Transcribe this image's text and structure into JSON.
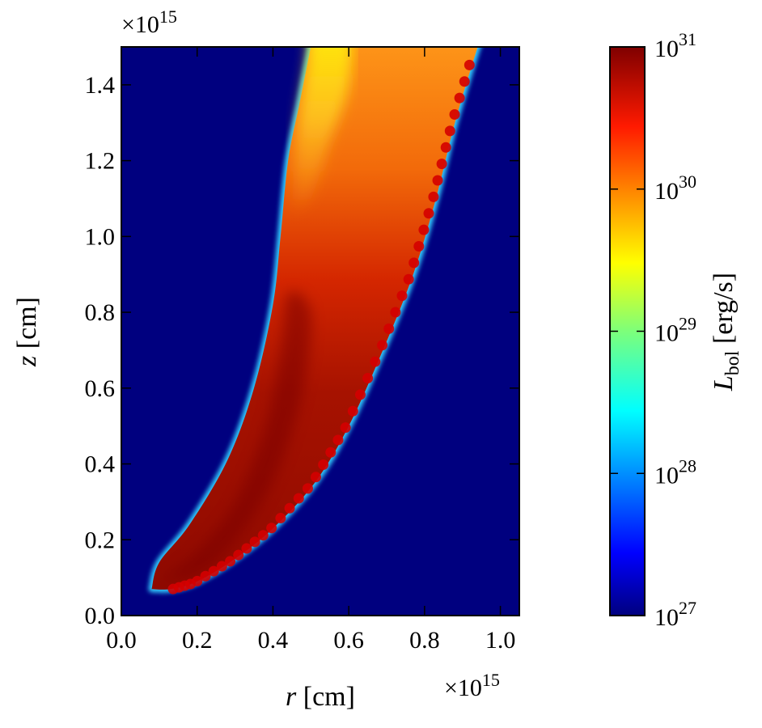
{
  "chart_data": {
    "type": "heatmap",
    "title": "",
    "x": {
      "label": "r [cm]",
      "label_var": "r",
      "label_unit": " [cm]",
      "range": [
        0.0,
        1.05
      ],
      "ticks": [
        0.0,
        0.2,
        0.4,
        0.6,
        0.8,
        1.0
      ],
      "tick_labels": [
        "0.0",
        "0.2",
        "0.4",
        "0.6",
        "0.8",
        "1.0"
      ],
      "multiplier": "×10",
      "multiplier_exp": "15"
    },
    "y": {
      "label": "z [cm]",
      "label_var": "z",
      "label_unit": " [cm]",
      "range": [
        0.0,
        1.5
      ],
      "ticks": [
        0.0,
        0.2,
        0.4,
        0.6,
        0.8,
        1.0,
        1.2,
        1.4
      ],
      "tick_labels": [
        "0.0",
        "0.2",
        "0.4",
        "0.6",
        "0.8",
        "1.0",
        "1.2",
        "1.4"
      ],
      "multiplier": "×10",
      "multiplier_exp": "15"
    },
    "colorbar": {
      "label": "L_bol [erg/s]",
      "label_var": "L",
      "label_sub": "bol",
      "label_unit": " [erg/s]",
      "scale": "log",
      "range": [
        1e+27,
        1e+31
      ],
      "ticks": [
        {
          "base": "10",
          "exp": "31"
        },
        {
          "base": "10",
          "exp": "30"
        },
        {
          "base": "10",
          "exp": "29"
        },
        {
          "base": "10",
          "exp": "28"
        },
        {
          "base": "10",
          "exp": "27"
        }
      ],
      "colormap": "jet"
    },
    "background_value": 1e+27,
    "colors": {
      "background": "#00007f",
      "dark_red": "#8b0000",
      "red": "#e01c00",
      "orange": "#ff8c00",
      "yellow": "#ffee00",
      "cyan": "#00ffff"
    },
    "region": {
      "description_units": "r and z in units of 1e15 cm",
      "left_edge": [
        [
          0.08,
          0.07
        ],
        [
          0.1,
          0.14
        ],
        [
          0.18,
          0.24
        ],
        [
          0.28,
          0.41
        ],
        [
          0.35,
          0.6
        ],
        [
          0.4,
          0.82
        ],
        [
          0.42,
          1.0
        ],
        [
          0.44,
          1.2
        ],
        [
          0.47,
          1.35
        ],
        [
          0.5,
          1.5
        ]
      ],
      "right_edge": [
        [
          0.94,
          1.5
        ],
        [
          0.88,
          1.3
        ],
        [
          0.83,
          1.1
        ],
        [
          0.77,
          0.9
        ],
        [
          0.69,
          0.7
        ],
        [
          0.6,
          0.5
        ],
        [
          0.51,
          0.35
        ],
        [
          0.4,
          0.23
        ],
        [
          0.3,
          0.15
        ],
        [
          0.2,
          0.09
        ],
        [
          0.13,
          0.07
        ]
      ],
      "approx_log_luminosity_zones": [
        {
          "zone": "base (z<0.4)",
          "log_L": 30.9
        },
        {
          "zone": "mid inner (z 0.5–0.9)",
          "log_L": 30.8
        },
        {
          "zone": "outer flank",
          "log_L": 30.4
        },
        {
          "zone": "upper interior (z>1.0)",
          "log_L": 30.2
        },
        {
          "zone": "top-left edge (z>1.3)",
          "log_L": 29.8
        }
      ]
    }
  }
}
